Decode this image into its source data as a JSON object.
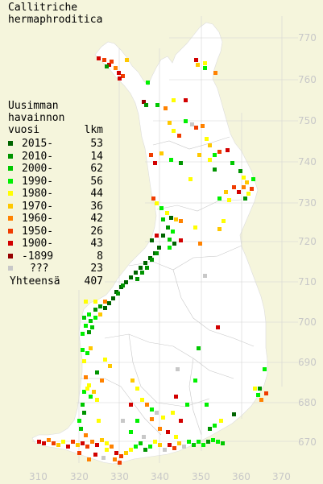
{
  "title_lines": [
    "Callitriche",
    "hermaphroditica"
  ],
  "legend": {
    "heading_lines": [
      "Uusimman",
      "havainnon",
      "vuosi"
    ],
    "count_header": "lkm",
    "items": [
      {
        "label": "2015-",
        "count": "53",
        "color": "#006400"
      },
      {
        "label": "2010-",
        "count": "14",
        "color": "#009400"
      },
      {
        "label": "2000-",
        "count": "62",
        "color": "#00c800"
      },
      {
        "label": "1990-",
        "count": "56",
        "color": "#00f000"
      },
      {
        "label": "1980-",
        "count": "44",
        "color": "#ffff00"
      },
      {
        "label": "1970-",
        "count": "36",
        "color": "#ffc800"
      },
      {
        "label": "1960-",
        "count": "42",
        "color": "#ff8200"
      },
      {
        "label": "1950-",
        "count": "26",
        "color": "#f03c00"
      },
      {
        "label": "1900-",
        "count": "43",
        "color": "#d20000"
      },
      {
        "label": "-1899",
        "count": "8",
        "color": "#960000"
      },
      {
        "label": "???",
        "count": "23",
        "color": "#c8c8c8"
      }
    ],
    "total_label": "Yhteensä",
    "total_count": "407"
  },
  "axes": {
    "y_ticks": [
      "770",
      "760",
      "750",
      "740",
      "730",
      "720",
      "710",
      "700",
      "690",
      "680",
      "670"
    ],
    "x_ticks": [
      "310",
      "320",
      "330",
      "340",
      "350",
      "360",
      "370"
    ]
  },
  "colors": {
    "background": "#f5f5dc",
    "land": "#ffffff",
    "grid": "#d4d4d4",
    "borders": "#c8c8c8"
  }
}
